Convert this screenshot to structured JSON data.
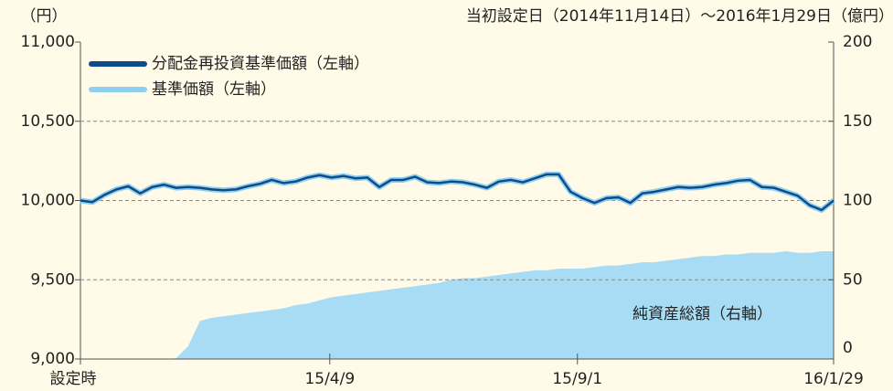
{
  "chart_data": {
    "type": "line",
    "y_unit_label": "（円）",
    "y2_unit_label": "（億円）",
    "subtitle": "当初設定日（2014年11月14日）～2016年1月29日",
    "annotation": "純資産総額（右軸）",
    "legend": "upper left",
    "grid": true,
    "x": [
      "2014-11-14",
      "2014-11-21",
      "2014-11-28",
      "2014-12-05",
      "2014-12-12",
      "2014-12-19",
      "2014-12-26",
      "2015-01-02",
      "2015-01-09",
      "2015-01-16",
      "2015-01-23",
      "2015-01-30",
      "2015-02-06",
      "2015-02-13",
      "2015-02-20",
      "2015-02-27",
      "2015-03-06",
      "2015-03-13",
      "2015-03-20",
      "2015-03-27",
      "2015-04-03",
      "2015-04-10",
      "2015-04-17",
      "2015-04-24",
      "2015-05-01",
      "2015-05-08",
      "2015-05-15",
      "2015-05-22",
      "2015-05-29",
      "2015-06-05",
      "2015-06-12",
      "2015-06-19",
      "2015-06-26",
      "2015-07-03",
      "2015-07-10",
      "2015-07-17",
      "2015-07-24",
      "2015-07-31",
      "2015-08-07",
      "2015-08-14",
      "2015-08-21",
      "2015-08-28",
      "2015-09-04",
      "2015-09-11",
      "2015-09-18",
      "2015-09-25",
      "2015-10-02",
      "2015-10-09",
      "2015-10-16",
      "2015-10-23",
      "2015-10-30",
      "2015-11-06",
      "2015-11-13",
      "2015-11-20",
      "2015-11-27",
      "2015-12-04",
      "2015-12-11",
      "2015-12-18",
      "2015-12-25",
      "2016-01-01",
      "2016-01-08",
      "2016-01-15",
      "2016-01-22",
      "2016-01-29"
    ],
    "xlim": [
      "2014-11-14",
      "2016-01-29"
    ],
    "xticks": [
      {
        "value": "2014-11-14",
        "label": "設定時"
      },
      {
        "value": "2015-04-09",
        "label": "15/4/9"
      },
      {
        "value": "2015-09-01",
        "label": "15/9/1"
      },
      {
        "value": "2016-01-29",
        "label": "16/1/29"
      }
    ],
    "ylim": [
      9000,
      11000
    ],
    "yticks": [
      {
        "value": 9000,
        "label": "9,000"
      },
      {
        "value": 9500,
        "label": "9,500"
      },
      {
        "value": 10000,
        "label": "10,000"
      },
      {
        "value": 10500,
        "label": "10,500"
      },
      {
        "value": 11000,
        "label": "11,000"
      }
    ],
    "y2lim": [
      0,
      200
    ],
    "y2ticks": [
      0,
      50,
      100,
      150,
      200
    ],
    "series": [
      {
        "name": "純資産総額（右軸）",
        "type": "area",
        "axis": "y2",
        "color": "#a8dcf4",
        "values": [
          0,
          0,
          0,
          0,
          0,
          0,
          0,
          0,
          0.5,
          8,
          24,
          26,
          27,
          28,
          29,
          30,
          31,
          32,
          34,
          35,
          37,
          39,
          40,
          41,
          42,
          43,
          44,
          45,
          46,
          47,
          48,
          50,
          51,
          51,
          52,
          53,
          54,
          55,
          56,
          56,
          57,
          57,
          57,
          58,
          59,
          59,
          60,
          61,
          61,
          62,
          63,
          64,
          65,
          65,
          66,
          66,
          67,
          67,
          67,
          68,
          67,
          67,
          68,
          68
        ]
      },
      {
        "name": "基準価額（左軸）",
        "type": "line",
        "color": "#8fd0f0",
        "values": [
          10000,
          9990,
          10035,
          10070,
          10090,
          10045,
          10085,
          10100,
          10080,
          10085,
          10080,
          10070,
          10065,
          10070,
          10090,
          10105,
          10130,
          10110,
          10120,
          10145,
          10160,
          10145,
          10155,
          10140,
          10145,
          10085,
          10130,
          10130,
          10150,
          10115,
          10110,
          10120,
          10115,
          10100,
          10080,
          10120,
          10130,
          10115,
          10140,
          10165,
          10165,
          10055,
          10015,
          9985,
          10015,
          10020,
          9985,
          10045,
          10055,
          10070,
          10085,
          10080,
          10085,
          10100,
          10110,
          10125,
          10130,
          10085,
          10080,
          10055,
          10030,
          9970,
          9940,
          10000
        ]
      },
      {
        "name": "分配金再投資基準価額（左軸）",
        "type": "line",
        "color": "#0f4c8a",
        "values": [
          10000,
          9990,
          10035,
          10070,
          10090,
          10045,
          10085,
          10100,
          10080,
          10085,
          10080,
          10070,
          10065,
          10070,
          10090,
          10105,
          10130,
          10110,
          10120,
          10145,
          10160,
          10145,
          10155,
          10140,
          10145,
          10085,
          10130,
          10130,
          10150,
          10115,
          10110,
          10120,
          10115,
          10100,
          10080,
          10120,
          10130,
          10115,
          10140,
          10165,
          10165,
          10055,
          10015,
          9985,
          10015,
          10020,
          9985,
          10045,
          10055,
          10070,
          10085,
          10080,
          10085,
          10100,
          10110,
          10125,
          10130,
          10085,
          10080,
          10055,
          10030,
          9970,
          9940,
          10000
        ]
      }
    ]
  }
}
